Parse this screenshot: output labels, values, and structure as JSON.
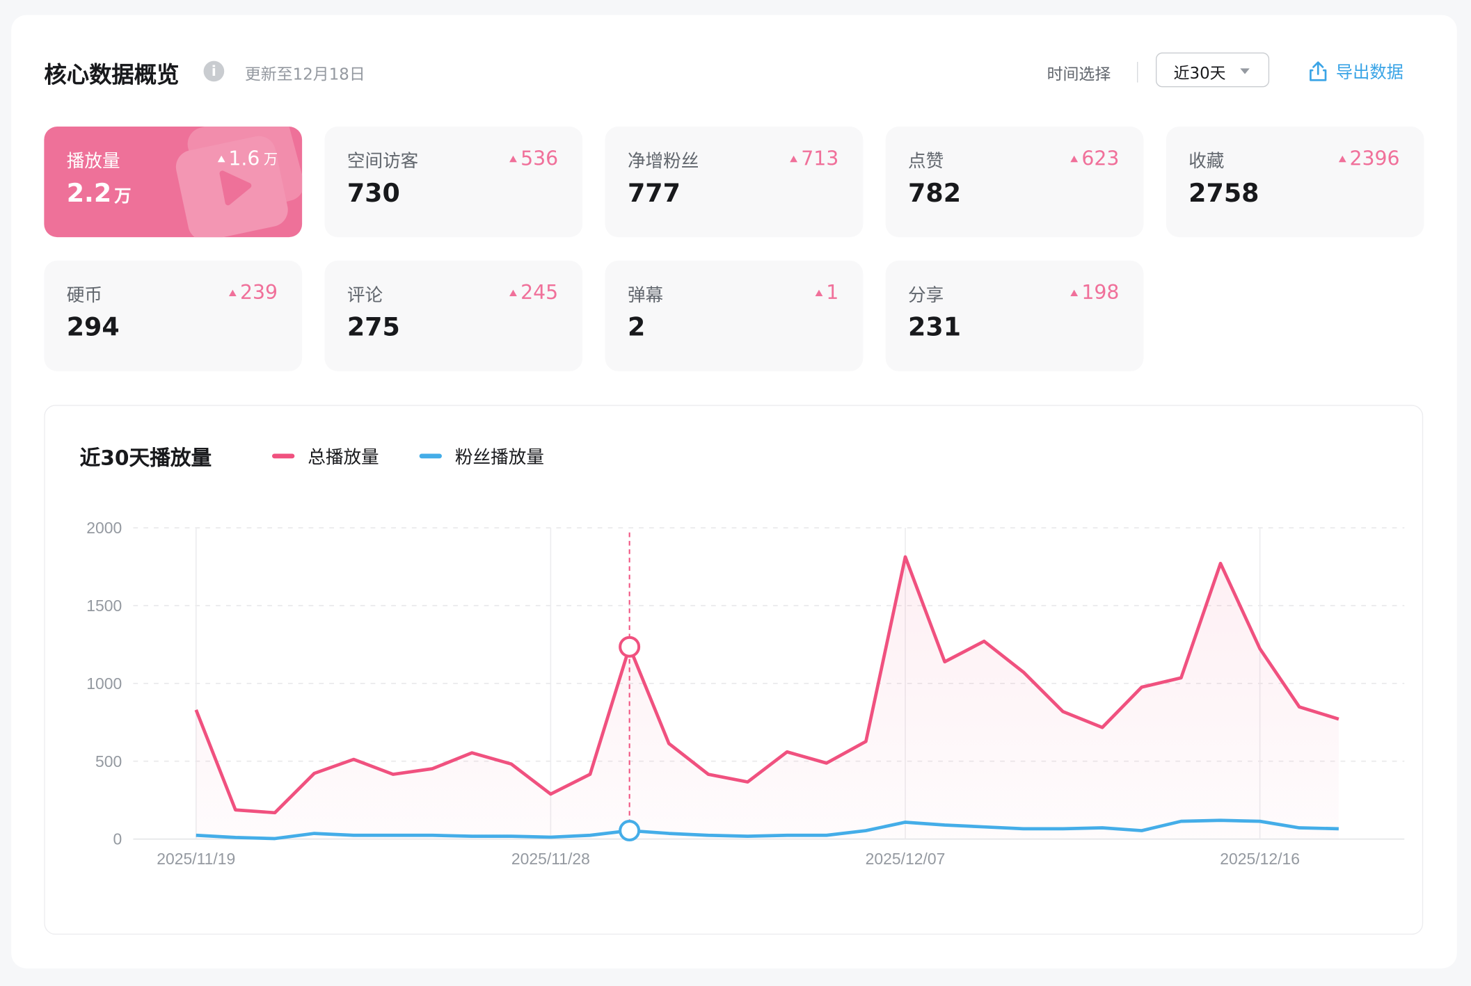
{
  "header": {
    "title": "核心数据概览",
    "info_icon": "info-icon",
    "updated": "更新至12月18日",
    "time_select_label": "时间选择",
    "time_select_value": "近30天",
    "export_label": "导出数据",
    "export_icon": "share-upload-icon"
  },
  "cards": [
    {
      "label": "播放量",
      "value": "2.2",
      "value_unit": "万",
      "delta": "1.6",
      "delta_unit": "万",
      "active": true
    },
    {
      "label": "空间访客",
      "value": "730",
      "delta": "536"
    },
    {
      "label": "净增粉丝",
      "value": "777",
      "delta": "713"
    },
    {
      "label": "点赞",
      "value": "782",
      "delta": "623"
    },
    {
      "label": "收藏",
      "value": "2758",
      "delta": "2396"
    },
    {
      "label": "硬币",
      "value": "294",
      "delta": "239"
    },
    {
      "label": "评论",
      "value": "275",
      "delta": "245"
    },
    {
      "label": "弹幕",
      "value": "2",
      "delta": "1"
    },
    {
      "label": "分享",
      "value": "231",
      "delta": "198"
    }
  ],
  "colors": {
    "accent": "#ee7199",
    "total_line": "#f0517f",
    "fan_line": "#44ade8",
    "export": "#3aa4e6"
  },
  "chart_data": {
    "type": "line",
    "title": "近30天播放量",
    "x": [
      "2025/11/19",
      "2025/11/20",
      "2025/11/21",
      "2025/11/22",
      "2025/11/23",
      "2025/11/24",
      "2025/11/25",
      "2025/11/26",
      "2025/11/27",
      "2025/11/28",
      "2025/11/29",
      "2025/11/30",
      "2025/12/01",
      "2025/12/02",
      "2025/12/03",
      "2025/12/04",
      "2025/12/05",
      "2025/12/06",
      "2025/12/07",
      "2025/12/08",
      "2025/12/09",
      "2025/12/10",
      "2025/12/11",
      "2025/12/12",
      "2025/12/13",
      "2025/12/14",
      "2025/12/15",
      "2025/12/16",
      "2025/12/17",
      "2025/12/18"
    ],
    "x_tick_labels": [
      "2025/11/19",
      "2025/11/28",
      "2025/12/07",
      "2025/12/16"
    ],
    "y_ticks": [
      "0",
      "500",
      "1000",
      "1500",
      "2000"
    ],
    "ylim": [
      0,
      2000
    ],
    "grid": true,
    "legend_placement": "top-left",
    "highlighted_x": "2025/11/30",
    "series": [
      {
        "name": "总播放量",
        "color": "#f0517f",
        "area": true,
        "values": [
          830,
          187,
          169,
          422,
          512,
          416,
          452,
          554,
          482,
          289,
          416,
          1235,
          614,
          416,
          367,
          560,
          488,
          627,
          1813,
          1139,
          1271,
          1072,
          819,
          717,
          976,
          1036,
          1771,
          1223,
          849,
          771
        ]
      },
      {
        "name": "粉丝播放量",
        "color": "#44ade8",
        "values": [
          24,
          10,
          3,
          36,
          24,
          24,
          24,
          18,
          18,
          12,
          24,
          54,
          36,
          24,
          18,
          24,
          24,
          54,
          108,
          90,
          78,
          66,
          66,
          72,
          54,
          114,
          120,
          114,
          72,
          66
        ]
      }
    ]
  }
}
